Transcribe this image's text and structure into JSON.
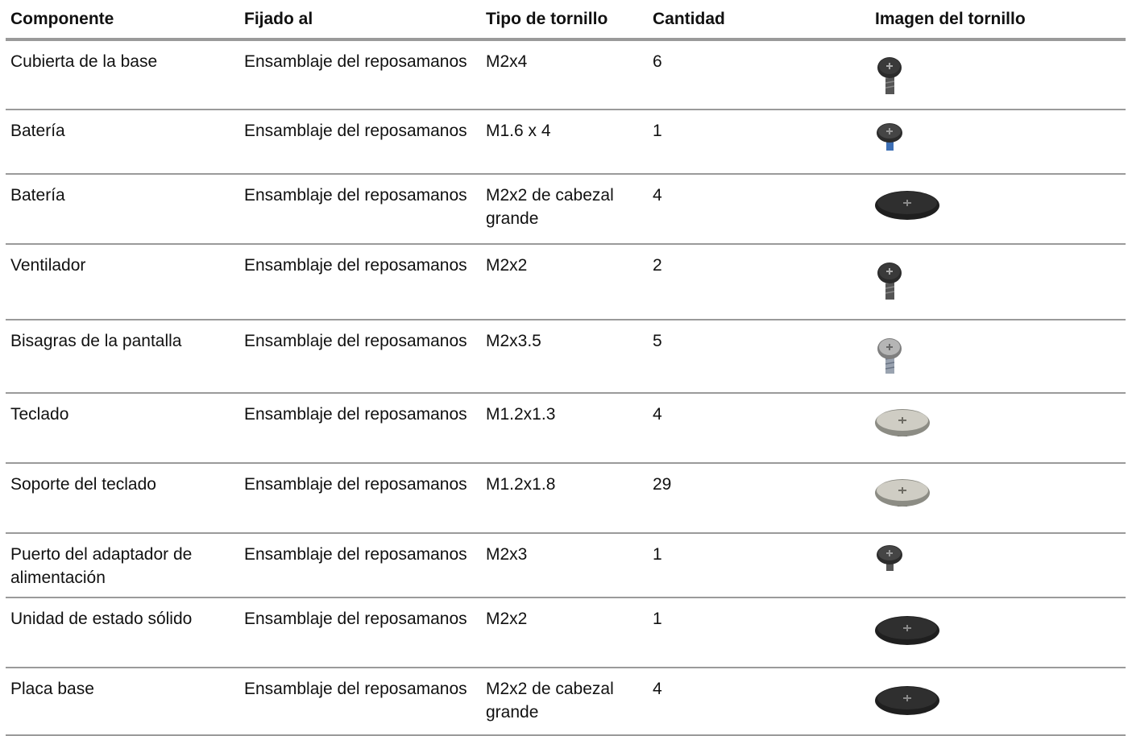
{
  "headers": [
    "Componente",
    "Fijado al",
    "Tipo de tornillo",
    "Cantidad",
    "Imagen del tornillo"
  ],
  "rows": [
    {
      "component": "Cubierta de la base",
      "attached_to": "Ensamblaje del reposamanos",
      "screw_type": "M2x4",
      "quantity": "6",
      "screw_icon": "screw-m2x4-icon"
    },
    {
      "component": "Batería",
      "attached_to": "Ensamblaje del reposamanos",
      "screw_type": "M1.6 x 4",
      "quantity": "1",
      "screw_icon": "screw-m1-6x4-icon"
    },
    {
      "component": "Batería",
      "attached_to": "Ensamblaje del reposamanos",
      "screw_type": "M2x2 de cabezal grande",
      "quantity": "4",
      "screw_icon": "screw-m2x2-big-head-icon"
    },
    {
      "component": "Ventilador",
      "attached_to": "Ensamblaje del reposamanos",
      "screw_type": "M2x2",
      "quantity": "2",
      "screw_icon": "screw-m2x2-icon"
    },
    {
      "component": "Bisagras de la pantalla",
      "attached_to": "Ensamblaje del reposamanos",
      "screw_type": "M2x3.5",
      "quantity": "5",
      "screw_icon": "screw-m2x3-5-icon"
    },
    {
      "component": "Teclado",
      "attached_to": "Ensamblaje del reposamanos",
      "screw_type": "M1.2x1.3",
      "quantity": "4",
      "screw_icon": "screw-m1-2x1-3-icon"
    },
    {
      "component": "Soporte del teclado",
      "attached_to": "Ensamblaje del reposamanos",
      "screw_type": "M1.2x1.8",
      "quantity": "29",
      "screw_icon": "screw-m1-2x1-8-icon"
    },
    {
      "component": "Puerto del adaptador de alimentación",
      "attached_to": "Ensamblaje del reposamanos",
      "screw_type": "M2x3",
      "quantity": "1",
      "screw_icon": "screw-m2x3-icon"
    },
    {
      "component": "Unidad de estado sólido",
      "attached_to": "Ensamblaje del reposamanos",
      "screw_type": "M2x2",
      "quantity": "1",
      "screw_icon": "screw-m2x2-flat-icon"
    },
    {
      "component": "Placa base",
      "attached_to": "Ensamblaje del reposamanos",
      "screw_type": "M2x2 de cabezal grande",
      "quantity": "4",
      "screw_icon": "screw-m2x2-big-head-icon"
    }
  ]
}
